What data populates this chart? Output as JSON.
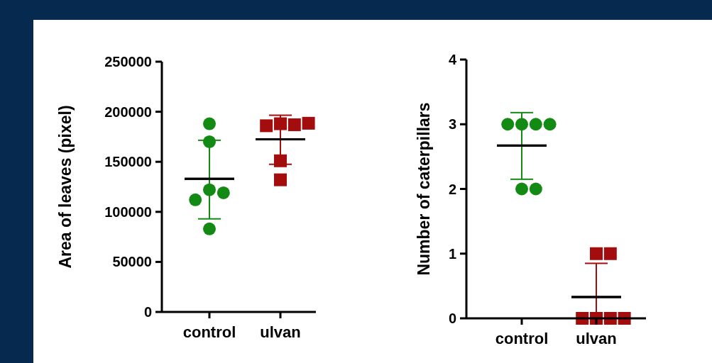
{
  "chart_data": [
    {
      "type": "scatter",
      "ylabel": "Area of leaves (pixel)",
      "categories": [
        "control",
        "ulvan"
      ],
      "ylim": [
        0,
        250000
      ],
      "yticks": [
        0,
        50000,
        100000,
        150000,
        200000,
        250000
      ],
      "series": [
        {
          "type": "scatter",
          "marker": "circle",
          "color": "#138a13",
          "x": [
            "control",
            "control",
            "control",
            "control",
            "control",
            "control"
          ],
          "values": [
            188000,
            170000,
            122000,
            119000,
            112000,
            83000
          ]
        },
        {
          "type": "scatter",
          "marker": "square",
          "color": "#a30d0d",
          "x": [
            "ulvan",
            "ulvan",
            "ulvan",
            "ulvan",
            "ulvan",
            "ulvan"
          ],
          "values": [
            188000,
            187000,
            186000,
            188500,
            151000,
            132000
          ]
        },
        {
          "type": "box",
          "color": "#000000",
          "boxes": [
            {
              "low": 93000,
              "q1": 133000,
              "median": 133000,
              "q3": 133000,
              "high": 171500
            },
            {
              "low": 147500,
              "q1": 172500,
              "median": 172500,
              "q3": 172500,
              "high": 196500
            }
          ]
        }
      ]
    },
    {
      "type": "scatter",
      "ylabel": "Number of caterpillars",
      "categories": [
        "control",
        "ulvan"
      ],
      "ylim": [
        0,
        4
      ],
      "yticks": [
        0,
        1,
        2,
        3,
        4
      ],
      "series": [
        {
          "type": "scatter",
          "marker": "circle",
          "color": "#138a13",
          "x": [
            "control",
            "control",
            "control",
            "control",
            "control",
            "control"
          ],
          "values": [
            3,
            3,
            3,
            3,
            2,
            2
          ]
        },
        {
          "type": "scatter",
          "marker": "square",
          "color": "#a30d0d",
          "x": [
            "ulvan",
            "ulvan",
            "ulvan",
            "ulvan",
            "ulvan",
            "ulvan"
          ],
          "values": [
            1,
            1,
            0,
            0,
            0,
            0
          ]
        },
        {
          "type": "box",
          "color": "#000000",
          "boxes": [
            {
              "low": 2.15,
              "q1": 2.67,
              "median": 2.67,
              "q3": 2.67,
              "high": 3.18
            },
            {
              "low": 0,
              "q1": 0.33,
              "median": 0.33,
              "q3": 0.33,
              "high": 0.85
            }
          ]
        }
      ]
    }
  ]
}
